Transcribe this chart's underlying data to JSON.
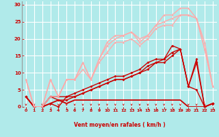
{
  "bg_color": "#b0eaea",
  "grid_color": "#ffffff",
  "xlabel": "Vent moyen/en rafales ( km/h )",
  "xlabel_color": "#cc0000",
  "tick_color": "#cc0000",
  "arrow_color": "#cc0000",
  "xlim": [
    -0.5,
    23.5
  ],
  "ylim": [
    0,
    31
  ],
  "yticks": [
    0,
    5,
    10,
    15,
    20,
    25,
    30
  ],
  "xticks": [
    0,
    1,
    2,
    3,
    4,
    5,
    6,
    7,
    8,
    9,
    10,
    11,
    12,
    13,
    14,
    15,
    16,
    17,
    18,
    19,
    20,
    21,
    22,
    23
  ],
  "series": [
    {
      "x": [
        0,
        1,
        2,
        3,
        4,
        5,
        6,
        7,
        8,
        9,
        10,
        11,
        12,
        13,
        14,
        15,
        16,
        17,
        18,
        19,
        20,
        21,
        22,
        23
      ],
      "y": [
        3,
        0,
        0,
        3,
        3,
        3,
        4,
        5,
        6,
        7,
        8,
        9,
        9,
        10,
        11,
        13,
        14,
        14,
        18,
        17,
        6,
        5,
        0,
        1
      ],
      "color": "#cc0000",
      "lw": 1.0,
      "marker": "D",
      "ms": 2.0
    },
    {
      "x": [
        0,
        1,
        2,
        3,
        4,
        5,
        6,
        7,
        8,
        9,
        10,
        11,
        12,
        13,
        14,
        15,
        16,
        17,
        18,
        19,
        20,
        21,
        22,
        23
      ],
      "y": [
        3,
        0,
        0,
        3,
        2,
        2,
        3,
        4,
        5,
        6,
        7,
        8,
        8,
        9,
        10,
        12,
        13,
        14,
        16,
        17,
        6,
        13,
        0,
        1
      ],
      "color": "#cc0000",
      "lw": 1.0,
      "marker": "D",
      "ms": 2.0
    },
    {
      "x": [
        0,
        1,
        2,
        3,
        4,
        5,
        6,
        7,
        8,
        9,
        10,
        11,
        12,
        13,
        14,
        15,
        16,
        17,
        18,
        19,
        20,
        21,
        22,
        23
      ],
      "y": [
        3,
        0,
        0,
        1,
        0,
        3,
        3,
        4,
        5,
        6,
        7,
        8,
        8,
        9,
        10,
        11,
        13,
        13,
        15,
        17,
        6,
        14,
        0,
        1
      ],
      "color": "#cc0000",
      "lw": 1.0,
      "marker": "D",
      "ms": 2.0
    },
    {
      "x": [
        0,
        1,
        2,
        3,
        4,
        5,
        6,
        7,
        8,
        9,
        10,
        11,
        12,
        13,
        14,
        15,
        16,
        17,
        18,
        19,
        20,
        22,
        23
      ],
      "y": [
        3,
        0,
        0,
        1,
        2,
        1,
        2,
        2,
        2,
        2,
        2,
        2,
        2,
        2,
        2,
        2,
        2,
        2,
        2,
        2,
        0,
        0,
        1
      ],
      "color": "#cc0000",
      "lw": 1.3,
      "marker": null,
      "ms": 0
    },
    {
      "x": [
        0,
        1,
        2,
        3,
        4,
        5,
        6,
        7,
        8,
        9,
        10,
        11,
        12,
        13,
        14,
        15,
        16,
        17,
        18,
        19,
        20,
        21,
        22,
        23
      ],
      "y": [
        8,
        0,
        0,
        8,
        3,
        8,
        8,
        13,
        8,
        14,
        19,
        21,
        21,
        22,
        20,
        21,
        24,
        27,
        27,
        29,
        29,
        26,
        19,
        6
      ],
      "color": "#ffaaaa",
      "lw": 1.0,
      "marker": "^",
      "ms": 2.0
    },
    {
      "x": [
        0,
        1,
        2,
        3,
        4,
        5,
        6,
        7,
        8,
        9,
        10,
        11,
        12,
        13,
        14,
        15,
        16,
        17,
        18,
        19,
        20,
        21,
        22,
        23
      ],
      "y": [
        8,
        0,
        0,
        8,
        3,
        8,
        8,
        13,
        8,
        14,
        18,
        20,
        21,
        22,
        19,
        21,
        24,
        25,
        26,
        27,
        27,
        26,
        17,
        6
      ],
      "color": "#ffaaaa",
      "lw": 1.0,
      "marker": "^",
      "ms": 2.0
    },
    {
      "x": [
        0,
        1,
        2,
        3,
        4,
        5,
        6,
        7,
        8,
        9,
        10,
        11,
        12,
        13,
        14,
        15,
        16,
        17,
        18,
        19,
        20,
        21,
        22,
        23
      ],
      "y": [
        8,
        0,
        0,
        3,
        3,
        8,
        8,
        11,
        8,
        13,
        16,
        19,
        19,
        20,
        18,
        20,
        23,
        24,
        24,
        27,
        27,
        26,
        17,
        6
      ],
      "color": "#ffaaaa",
      "lw": 1.0,
      "marker": "^",
      "ms": 2.0
    }
  ]
}
